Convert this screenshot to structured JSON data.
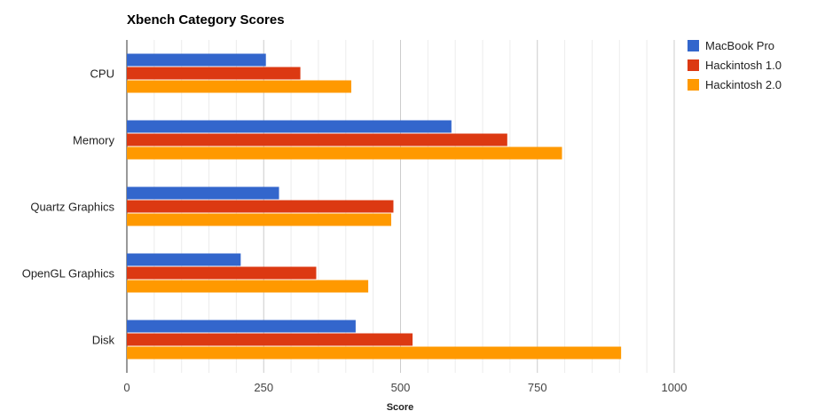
{
  "chart_data": {
    "type": "bar",
    "orientation": "horizontal",
    "title": "Xbench Category Scores",
    "xlabel": "Score",
    "ylabel": "",
    "categories": [
      "CPU",
      "Memory",
      "Quartz Graphics",
      "OpenGL Graphics",
      "Disk"
    ],
    "series": [
      {
        "name": "MacBook Pro",
        "color": "#3366cc",
        "values": [
          254,
          593,
          278,
          208,
          418
        ]
      },
      {
        "name": "Hackintosh 1.0",
        "color": "#dc3912",
        "values": [
          317,
          695,
          487,
          346,
          522
        ]
      },
      {
        "name": "Hackintosh 2.0",
        "color": "#ff9900",
        "values": [
          410,
          795,
          483,
          441,
          903
        ]
      }
    ],
    "xlim": [
      0,
      1000
    ],
    "xticks": [
      "0",
      "250",
      "500",
      "750",
      "1000"
    ],
    "grid": true,
    "legend_position": "right"
  }
}
